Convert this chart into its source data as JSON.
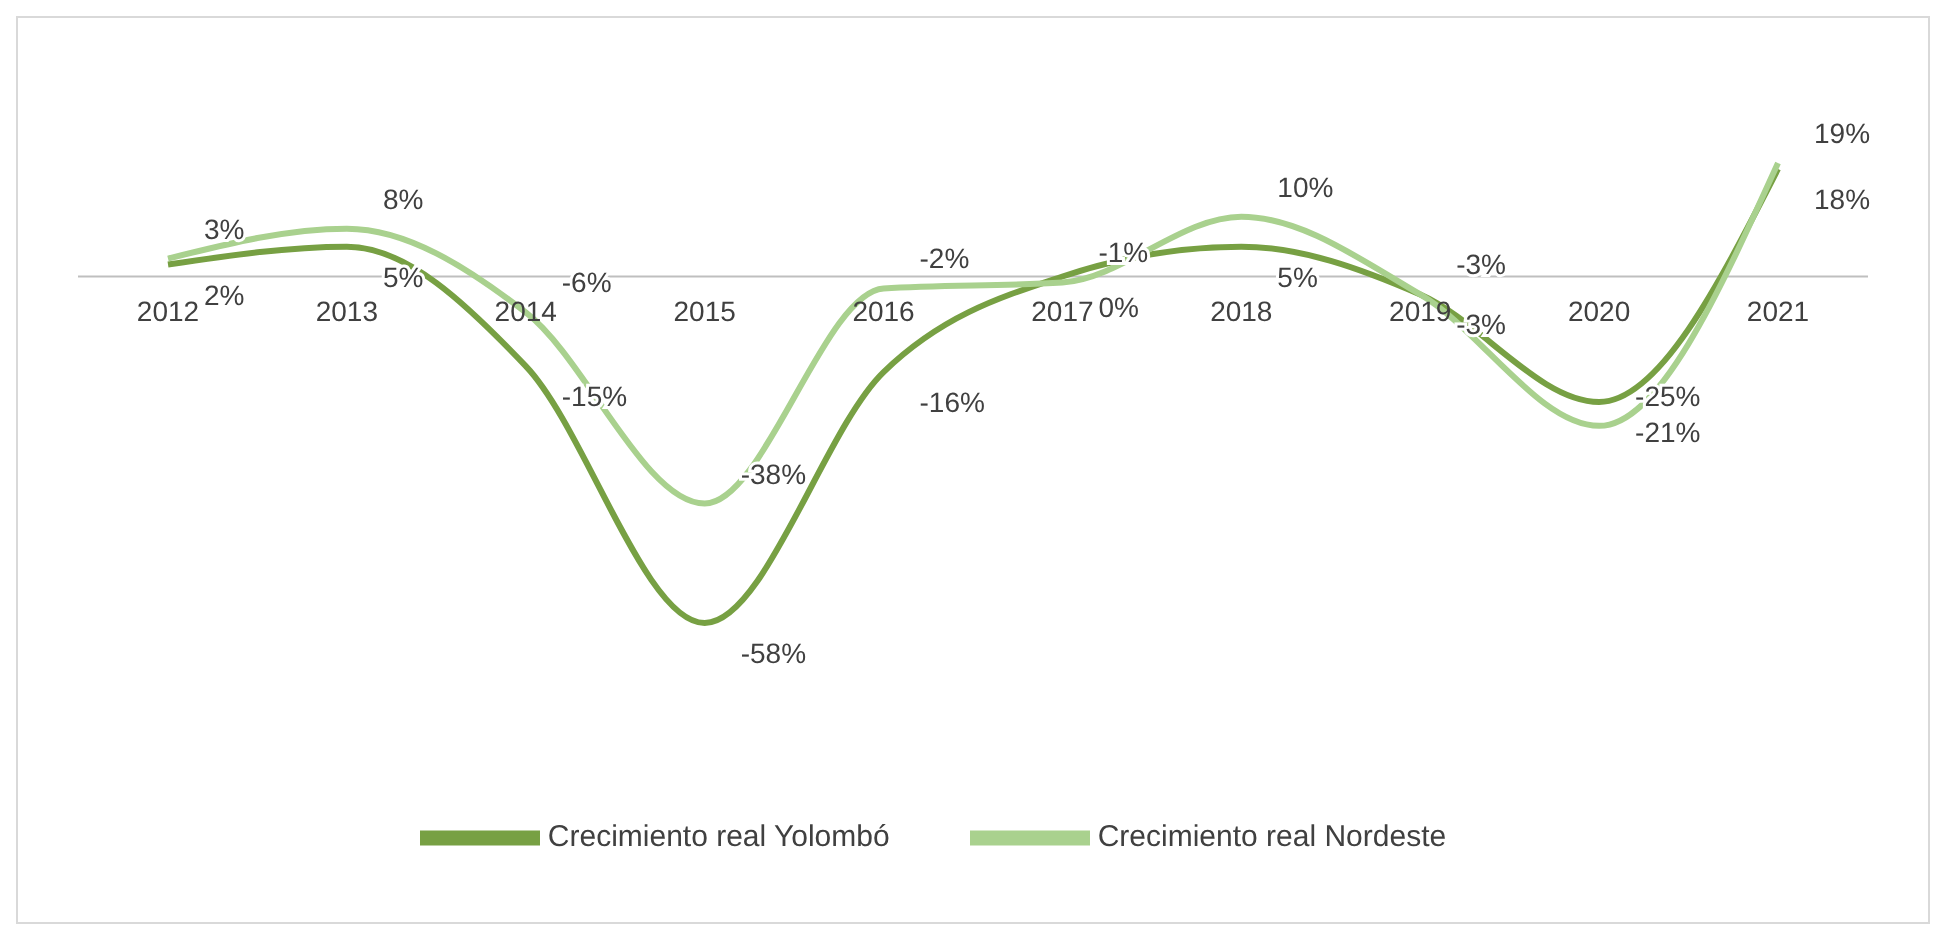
{
  "chart_data": {
    "type": "line",
    "categories": [
      "2012",
      "2013",
      "2014",
      "2015",
      "2016",
      "2017",
      "2018",
      "2019",
      "2020",
      "2021"
    ],
    "series": [
      {
        "name": "Crecimiento real Yolombó",
        "color": "#77a043",
        "values": [
          2,
          5,
          -15,
          -58,
          -16,
          0,
          5,
          -3,
          -21,
          18
        ],
        "value_labels": [
          "2%",
          "5%",
          "-15%",
          "-58%",
          "-16%",
          "0%",
          "5%",
          "-3%",
          "-21%",
          "18%"
        ]
      },
      {
        "name": "Crecimiento real Nordeste",
        "color": "#a9d18e",
        "values": [
          3,
          8,
          -6,
          -38,
          -2,
          -1,
          10,
          -3,
          -25,
          19
        ],
        "value_labels": [
          "3%",
          "8%",
          "-6%",
          "-38%",
          "-2%",
          "-1%",
          "10%",
          "-3%",
          "-25%",
          "19%"
        ]
      }
    ],
    "legend": "bottom",
    "marker": "none",
    "line_style": "solid"
  }
}
